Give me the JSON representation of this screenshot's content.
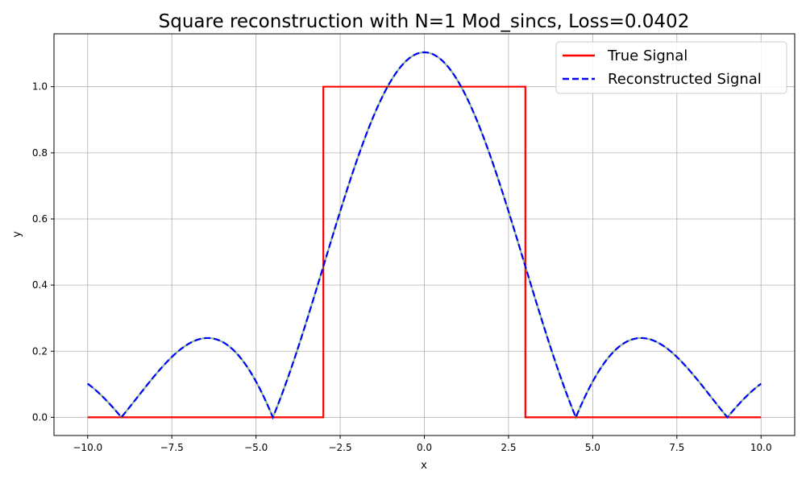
{
  "chart_data": {
    "type": "line",
    "title": "Square reconstruction with N=1 Mod_sincs, Loss=0.0402",
    "xlabel": "x",
    "ylabel": "y",
    "xlim": [
      -11.0,
      11.0
    ],
    "ylim": [
      -0.055,
      1.16
    ],
    "xticks": [
      -10.0,
      -7.5,
      -5.0,
      -2.5,
      0.0,
      2.5,
      5.0,
      7.5,
      10.0
    ],
    "xtick_labels": [
      "−10.0",
      "−7.5",
      "−5.0",
      "−2.5",
      "0.0",
      "2.5",
      "5.0",
      "7.5",
      "10.0"
    ],
    "yticks": [
      0.0,
      0.2,
      0.4,
      0.6,
      0.8,
      1.0
    ],
    "ytick_labels": [
      "0.0",
      "0.2",
      "0.4",
      "0.6",
      "0.8",
      "1.0"
    ],
    "grid": true,
    "legend_position": "top-right",
    "series": [
      {
        "name": "True Signal",
        "color": "#ff0000",
        "style": "solid",
        "points": [
          [
            -10.0,
            0.0
          ],
          [
            -3.0,
            0.0
          ],
          [
            -3.0,
            1.0
          ],
          [
            3.0,
            1.0
          ],
          [
            3.0,
            0.0
          ],
          [
            10.0,
            0.0
          ]
        ]
      },
      {
        "name": "Reconstructed Signal",
        "color": "#0000ff",
        "style": "dashed",
        "amplitude": 1.104,
        "zero_spacing": 4.5
      }
    ]
  }
}
